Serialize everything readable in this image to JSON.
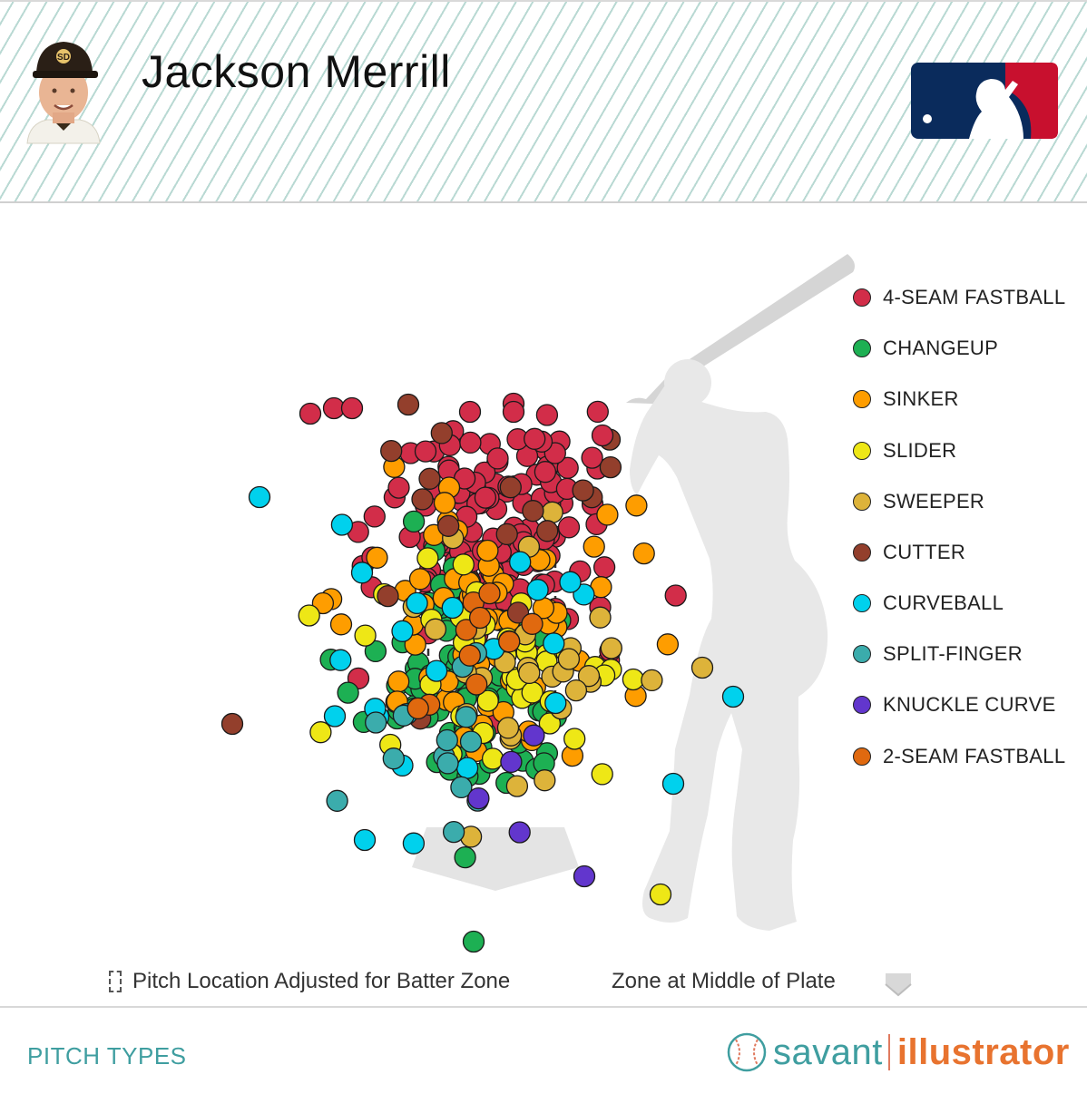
{
  "header": {
    "player_name": "Jackson Merrill",
    "headshot_icon": "player-headshot-icon",
    "league_logo_icon": "mlb-logo-icon"
  },
  "chart_data": {
    "type": "scatter",
    "x_description": "horizontal pitch location (catcher view, plot pixels)",
    "y_description": "vertical pitch location (plot pixels, top to bottom)",
    "grid": false,
    "legend_position": "right",
    "legend": [
      {
        "name": "4-SEAM FASTBALL",
        "color": "#d22d49"
      },
      {
        "name": "CHANGEUP",
        "color": "#1db053"
      },
      {
        "name": "SINKER",
        "color": "#fe9d00"
      },
      {
        "name": "SLIDER",
        "color": "#eee716"
      },
      {
        "name": "SWEEPER",
        "color": "#ddb33a"
      },
      {
        "name": "CUTTER",
        "color": "#933f2c"
      },
      {
        "name": "CURVEBALL",
        "color": "#00d1ed"
      },
      {
        "name": "SPLIT-FINGER",
        "color": "#3bacac"
      },
      {
        "name": "KNUCKLE CURVE",
        "color": "#6236cd"
      },
      {
        "name": "2-SEAM FASTBALL",
        "color": "#e0690f"
      }
    ],
    "seed": 20240611
  },
  "notes": {
    "adjusted": "Pitch Location Adjusted for Batter Zone",
    "middle_plate": "Zone at Middle of Plate"
  },
  "footer": {
    "section_label": "PITCH TYPES",
    "brand_left": "savant",
    "brand_right": "illustrator"
  }
}
